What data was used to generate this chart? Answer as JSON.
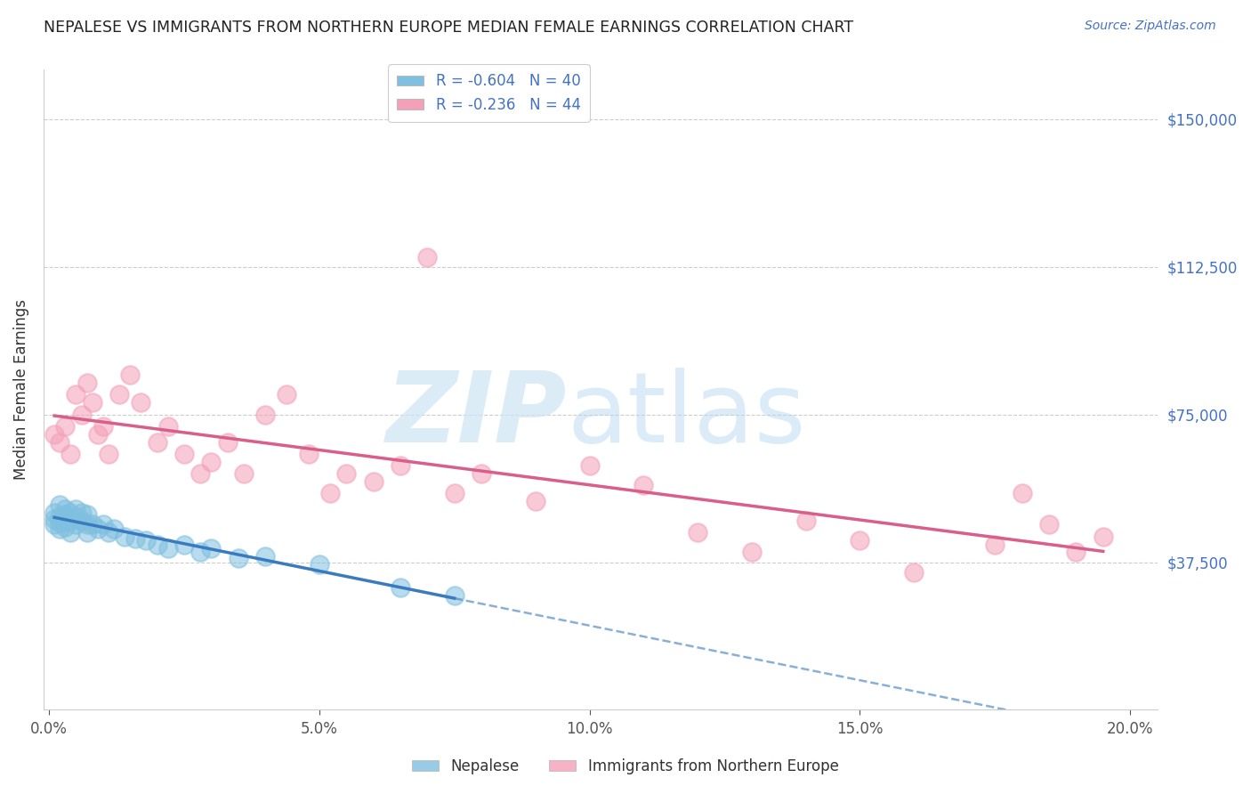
{
  "title": "NEPALESE VS IMMIGRANTS FROM NORTHERN EUROPE MEDIAN FEMALE EARNINGS CORRELATION CHART",
  "source": "Source: ZipAtlas.com",
  "ylabel": "Median Female Earnings",
  "xlabel_ticks": [
    "0.0%",
    "5.0%",
    "10.0%",
    "15.0%",
    "20.0%"
  ],
  "xlabel_vals": [
    0.0,
    0.05,
    0.1,
    0.15,
    0.2
  ],
  "ytick_labels": [
    "$37,500",
    "$75,000",
    "$112,500",
    "$150,000"
  ],
  "ytick_vals": [
    37500,
    75000,
    112500,
    150000
  ],
  "ylim": [
    0,
    162500
  ],
  "xlim": [
    -0.001,
    0.205
  ],
  "legend1_label": "R = -0.604   N = 40",
  "legend2_label": "R = -0.236   N = 44",
  "legend_bottom_label1": "Nepalese",
  "legend_bottom_label2": "Immigrants from Northern Europe",
  "blue_color": "#7fbfdf",
  "pink_color": "#f4a0b8",
  "blue_line_color": "#3a7bbf",
  "pink_line_color": "#d95f8a",
  "blue_scatter_x": [
    0.001,
    0.001,
    0.001,
    0.002,
    0.002,
    0.002,
    0.002,
    0.003,
    0.003,
    0.003,
    0.003,
    0.004,
    0.004,
    0.004,
    0.005,
    0.005,
    0.005,
    0.006,
    0.006,
    0.007,
    0.007,
    0.007,
    0.008,
    0.009,
    0.01,
    0.011,
    0.012,
    0.014,
    0.016,
    0.018,
    0.02,
    0.022,
    0.025,
    0.028,
    0.03,
    0.035,
    0.04,
    0.05,
    0.065,
    0.075
  ],
  "blue_scatter_y": [
    50000,
    48500,
    47000,
    52000,
    49000,
    47500,
    46000,
    51000,
    49500,
    48000,
    46500,
    50000,
    48000,
    45000,
    51000,
    49000,
    47000,
    50000,
    48000,
    49500,
    47000,
    45000,
    47000,
    46000,
    47000,
    45000,
    46000,
    44000,
    43500,
    43000,
    42000,
    41000,
    42000,
    40000,
    41000,
    38500,
    39000,
    37000,
    31000,
    29000
  ],
  "pink_scatter_x": [
    0.001,
    0.002,
    0.003,
    0.004,
    0.005,
    0.006,
    0.007,
    0.008,
    0.009,
    0.01,
    0.011,
    0.013,
    0.015,
    0.017,
    0.02,
    0.022,
    0.025,
    0.028,
    0.03,
    0.033,
    0.036,
    0.04,
    0.044,
    0.048,
    0.052,
    0.055,
    0.06,
    0.065,
    0.07,
    0.075,
    0.08,
    0.09,
    0.1,
    0.11,
    0.12,
    0.13,
    0.14,
    0.15,
    0.16,
    0.175,
    0.18,
    0.185,
    0.19,
    0.195
  ],
  "pink_scatter_y": [
    70000,
    68000,
    72000,
    65000,
    80000,
    75000,
    83000,
    78000,
    70000,
    72000,
    65000,
    80000,
    85000,
    78000,
    68000,
    72000,
    65000,
    60000,
    63000,
    68000,
    60000,
    75000,
    80000,
    65000,
    55000,
    60000,
    58000,
    62000,
    115000,
    55000,
    60000,
    53000,
    62000,
    57000,
    45000,
    40000,
    48000,
    43000,
    35000,
    42000,
    55000,
    47000,
    40000,
    44000
  ]
}
